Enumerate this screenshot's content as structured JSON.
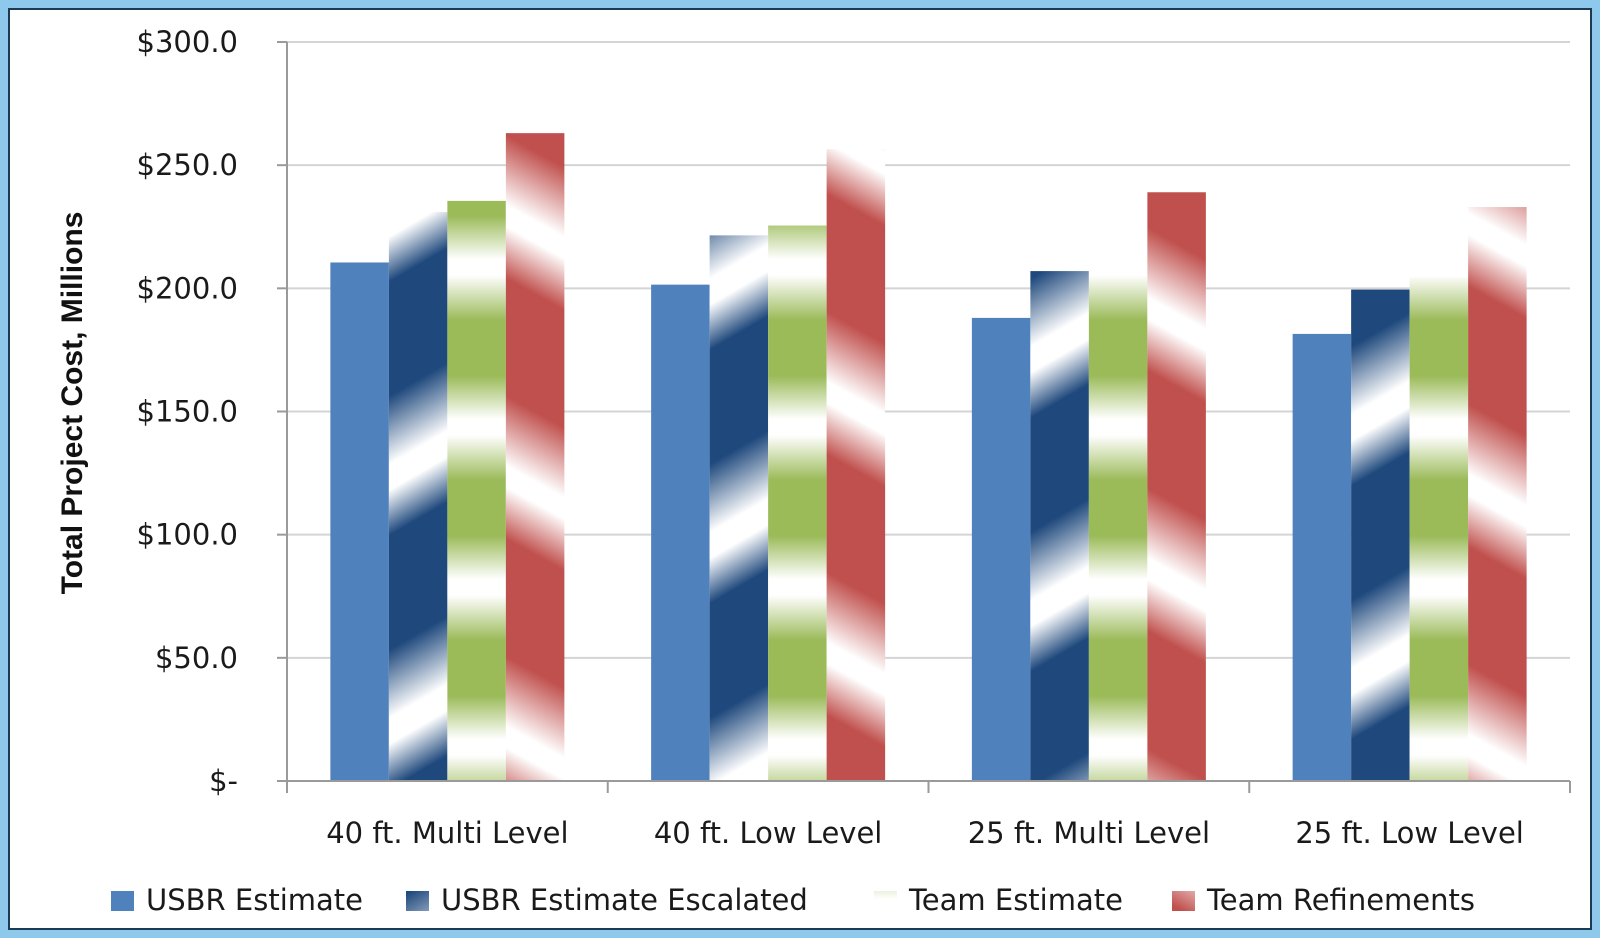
{
  "chart_data": {
    "type": "bar",
    "title": "",
    "xlabel": "",
    "ylabel": "Total Project Cost, Millions",
    "ylim": [
      0,
      300
    ],
    "yticks": [
      0,
      50,
      100,
      150,
      200,
      250,
      300
    ],
    "ytick_labels": [
      "$-",
      "$50.0",
      "$100.0",
      "$150.0",
      "$200.0",
      "$250.0",
      "$300.0"
    ],
    "categories": [
      "40 ft. Multi Level",
      "40 ft. Low Level",
      "25 ft. Multi Level",
      "25 ft. Low Level"
    ],
    "series": [
      {
        "name": "USBR Estimate",
        "values": [
          210.5,
          201.5,
          188.0,
          181.5
        ],
        "color": "#4f81bd",
        "pattern": "solid"
      },
      {
        "name": "USBR Estimate Escalated",
        "values": [
          231.0,
          221.5,
          207.0,
          199.5
        ],
        "color": "#1f497d",
        "pattern": "diagonal-down"
      },
      {
        "name": "Team Estimate",
        "values": [
          235.5,
          225.5,
          212.0,
          204.5
        ],
        "color": "#9bbb59",
        "pattern": "horizontal"
      },
      {
        "name": "Team Refinements",
        "values": [
          263.0,
          256.5,
          239.0,
          233.0
        ],
        "color": "#c0504d",
        "pattern": "diagonal-up"
      }
    ],
    "grid": true,
    "legend": "bottom"
  }
}
